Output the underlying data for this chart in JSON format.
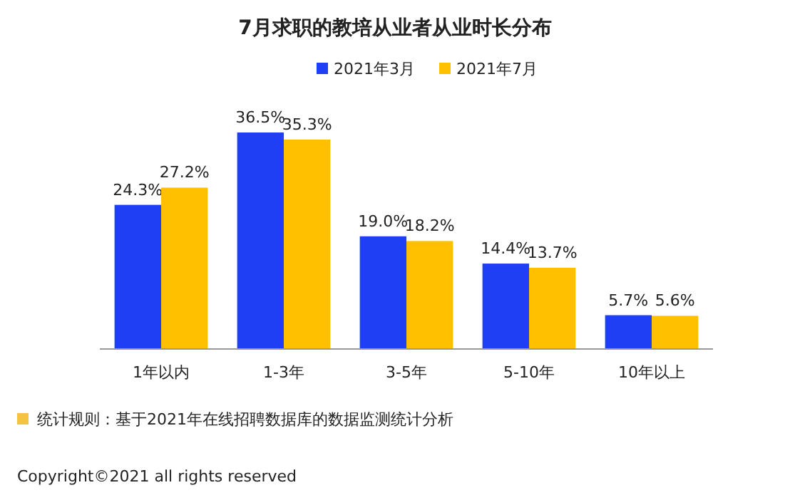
{
  "chart_data": {
    "type": "bar",
    "title": "7月求职的教培从业者从业时长分布",
    "categories": [
      "1年以内",
      "1-3年",
      "3-5年",
      "5-10年",
      "10年以上"
    ],
    "series": [
      {
        "name": "2021年3月",
        "color": "#1f3ff5",
        "values": [
          24.3,
          36.5,
          19.0,
          14.4,
          5.7
        ],
        "value_labels": [
          "24.3%",
          "36.5%",
          "19.0%",
          "14.4%",
          "5.7%"
        ]
      },
      {
        "name": "2021年7月",
        "color": "#ffc000",
        "values": [
          27.2,
          35.3,
          18.2,
          13.7,
          5.6
        ],
        "value_labels": [
          "27.2%",
          "35.3%",
          "18.2%",
          "13.7%",
          "5.6%"
        ]
      }
    ],
    "legend": "top right",
    "annotations": [
      "统计规则：基于2021年在线招聘数据库的数据监测统计分析",
      "Copyright©2021 all rights reserved"
    ]
  }
}
